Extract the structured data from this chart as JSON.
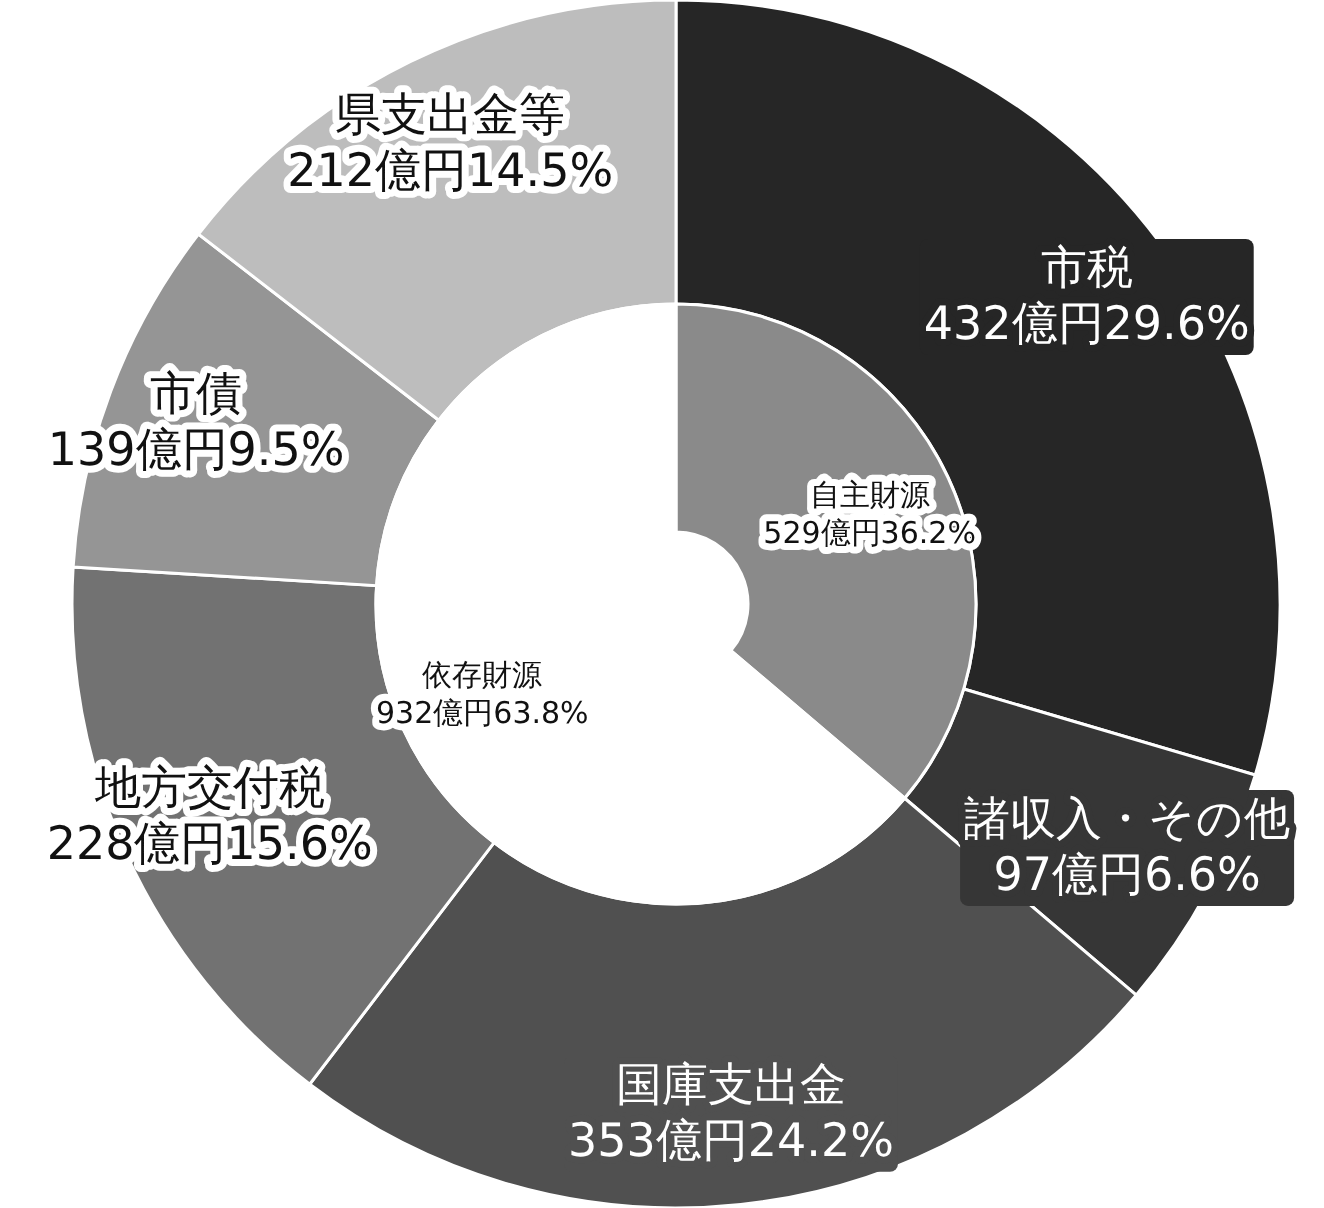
{
  "chart_data": [
    {
      "type": "donut",
      "categories": [
        "市税",
        "諸収入・その他",
        "国庫支出金",
        "地方交付税",
        "市債",
        "県支出金等"
      ],
      "values": [
        432,
        97,
        353,
        228,
        139,
        212
      ],
      "colors": [
        "#262626",
        "#363636",
        "#505050",
        "#727272",
        "#959595",
        "#bdbdbd"
      ],
      "value_labels": [
        "432億円29.6%",
        "97億円6.6%",
        "353億円24.2%",
        "228億円15.6%",
        "139億円9.5%",
        "212億円14.5%"
      ]
    },
    {
      "type": "donut",
      "categories": [
        "自主財源",
        "依存財源"
      ],
      "values": [
        529,
        932
      ],
      "colors": [
        "#8a8a8a",
        "#ffffff"
      ],
      "value_labels": [
        "529億円36.2%",
        "932億円63.8%"
      ]
    }
  ]
}
